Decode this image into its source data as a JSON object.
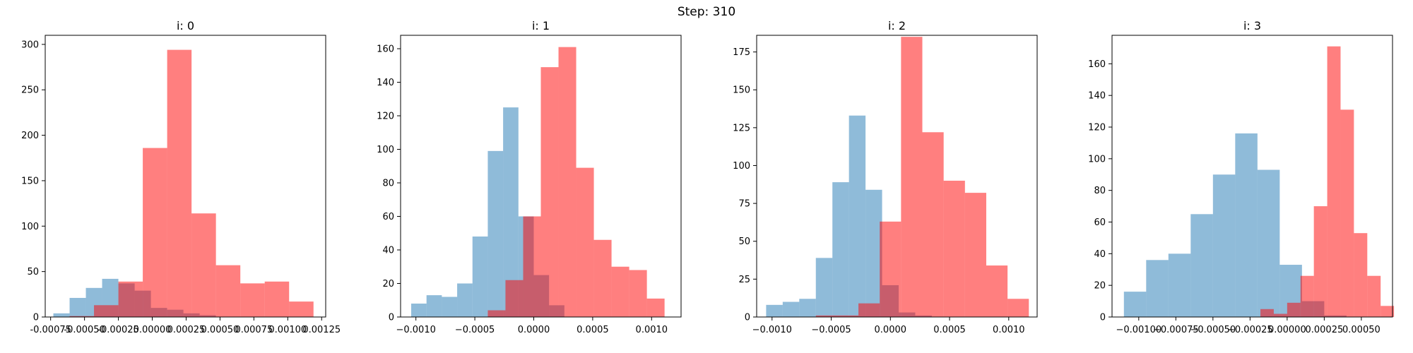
{
  "figure": {
    "suptitle": "Step: 310"
  },
  "colors": {
    "blue": "#1f77b4",
    "red": "#ff0000",
    "blue_alpha": 0.5,
    "red_alpha": 0.5
  },
  "chart_data": [
    {
      "type": "bar",
      "title": "i: 0",
      "xlim": [
        -0.00079,
        0.00128
      ],
      "ylim": [
        0,
        310
      ],
      "xticks": [
        -0.00075,
        -0.0005,
        -0.00025,
        0.0,
        0.00025,
        0.0005,
        0.00075,
        0.001,
        0.00125
      ],
      "xtick_labels": [
        "-0.00075",
        "-0.00050",
        "-0.00025",
        "0.00000",
        "0.00025",
        "0.00050",
        "0.00075",
        "0.00100",
        "0.00125"
      ],
      "yticks": [
        0,
        50,
        100,
        150,
        200,
        250,
        300
      ],
      "ytick_labels": [
        "0",
        "50",
        "100",
        "150",
        "200",
        "250",
        "300"
      ],
      "series": [
        {
          "color": "blue",
          "edges": [
            -0.00073,
            -0.00061,
            -0.00049,
            -0.00037,
            -0.00025,
            -0.00013,
            -1e-05,
            0.00011,
            0.00023,
            0.00035,
            0.00047
          ],
          "counts": [
            4,
            21,
            32,
            42,
            37,
            29,
            10,
            8,
            4,
            2
          ]
        },
        {
          "color": "red",
          "edges": [
            -0.00061,
            -0.00043,
            -0.00025,
            -7e-05,
            0.00011,
            0.00029,
            0.00047,
            0.00065,
            0.00083,
            0.00101,
            0.00119
          ],
          "counts": [
            1,
            13,
            39,
            186,
            294,
            114,
            57,
            37,
            39,
            17
          ]
        }
      ]
    },
    {
      "type": "bar",
      "title": "i: 1",
      "xlim": [
        -0.00113,
        0.00125
      ],
      "ylim": [
        0,
        168
      ],
      "xticks": [
        -0.001,
        -0.0005,
        0.0,
        0.0005,
        0.001
      ],
      "xtick_labels": [
        "−0.0010",
        "−0.0005",
        "0.0000",
        "0.0005",
        "0.0010"
      ],
      "yticks": [
        0,
        20,
        40,
        60,
        80,
        100,
        120,
        140,
        160
      ],
      "ytick_labels": [
        "0",
        "20",
        "40",
        "60",
        "80",
        "100",
        "120",
        "140",
        "160"
      ],
      "series": [
        {
          "color": "blue",
          "edges": [
            -0.00104,
            -0.00091,
            -0.00078,
            -0.00065,
            -0.00052,
            -0.00039,
            -0.00026,
            -0.00013,
            0.0,
            0.00013,
            0.00026
          ],
          "counts": [
            8,
            13,
            12,
            20,
            48,
            99,
            125,
            60,
            25,
            7
          ]
        },
        {
          "color": "red",
          "edges": [
            -0.00039,
            -0.00024,
            -9e-05,
            6e-05,
            0.00021,
            0.00036,
            0.00051,
            0.00066,
            0.00081,
            0.00096,
            0.00111
          ],
          "counts": [
            4,
            22,
            60,
            149,
            161,
            89,
            46,
            30,
            28,
            11
          ]
        }
      ]
    },
    {
      "type": "bar",
      "title": "i: 2",
      "xlim": [
        -0.00113,
        0.00124
      ],
      "ylim": [
        0,
        186
      ],
      "xticks": [
        -0.001,
        -0.0005,
        0.0,
        0.0005,
        0.001
      ],
      "xtick_labels": [
        "−0.0010",
        "−0.0005",
        "0.0000",
        "0.0005",
        "0.0010"
      ],
      "yticks": [
        0,
        25,
        50,
        75,
        100,
        125,
        150,
        175
      ],
      "ytick_labels": [
        "0",
        "25",
        "50",
        "75",
        "100",
        "125",
        "150",
        "175"
      ],
      "series": [
        {
          "color": "blue",
          "edges": [
            -0.00105,
            -0.00091,
            -0.00077,
            -0.00063,
            -0.00049,
            -0.00035,
            -0.00021,
            -7e-05,
            7e-05,
            0.00021,
            0.00035
          ],
          "counts": [
            8,
            10,
            12,
            39,
            89,
            133,
            84,
            21,
            3,
            1
          ]
        },
        {
          "color": "red",
          "edges": [
            -0.00063,
            -0.00045,
            -0.00027,
            -9e-05,
            9e-05,
            0.00027,
            0.00045,
            0.00063,
            0.00081,
            0.00099,
            0.00117
          ],
          "counts": [
            1,
            1,
            9,
            63,
            185,
            122,
            90,
            82,
            34,
            12
          ]
        }
      ]
    },
    {
      "type": "bar",
      "title": "i: 3",
      "xlim": [
        -0.00118,
        0.00071
      ],
      "ylim": [
        0,
        178
      ],
      "xticks": [
        -0.001,
        -0.00075,
        -0.0005,
        -0.00025,
        0.0,
        0.00025,
        0.0005
      ],
      "xtick_labels": [
        "−0.00100",
        "−0.00075",
        "−0.00050",
        "−0.00025",
        "0.00000",
        "0.00025",
        "0.00050"
      ],
      "yticks": [
        0,
        20,
        40,
        60,
        80,
        100,
        120,
        140,
        160
      ],
      "ytick_labels": [
        "0",
        "20",
        "40",
        "60",
        "80",
        "100",
        "120",
        "140",
        "160"
      ],
      "series": [
        {
          "color": "blue",
          "edges": [
            -0.0011,
            -0.00095,
            -0.0008,
            -0.00065,
            -0.0005,
            -0.00035,
            -0.0002,
            -5e-05,
            0.0001,
            0.00025,
            0.0004
          ],
          "counts": [
            16,
            36,
            40,
            65,
            90,
            116,
            93,
            33,
            10,
            1
          ]
        },
        {
          "color": "red",
          "edges": [
            -0.00018,
            -9e-05,
            0.0,
            9e-05,
            0.00018,
            0.00027,
            0.00036,
            0.00045,
            0.00054,
            0.00063,
            0.00072
          ],
          "counts": [
            5,
            2,
            9,
            26,
            70,
            171,
            131,
            53,
            26,
            7
          ]
        }
      ]
    }
  ]
}
